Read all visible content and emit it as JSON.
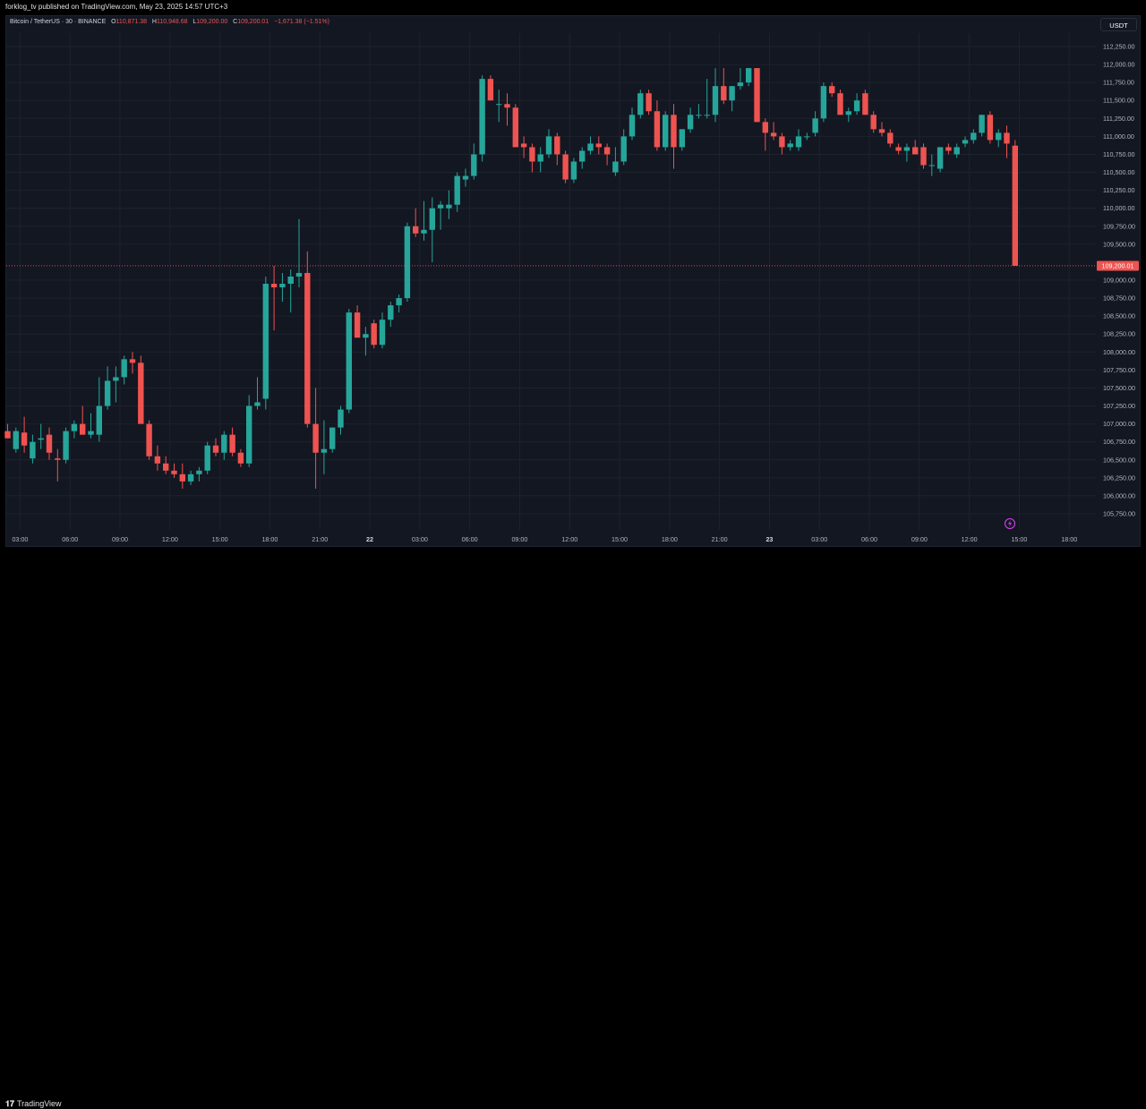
{
  "header": {
    "published_text": "forklog_tv published on TradingView.com, May 23, 2025 14:57 UTC+3"
  },
  "legend": {
    "symbol": "Bitcoin / TetherUS · 30 · BINANCE",
    "open_key": "O",
    "open": "110,871.38",
    "high_key": "H",
    "high": "110,948.68",
    "low_key": "L",
    "low": "109,200.00",
    "close_key": "C",
    "close": "109,200.01",
    "change": "−1,671.38 (−1.51%)"
  },
  "unit_badge": "USDT",
  "footer": {
    "brand": "TradingView",
    "logo_mark": "𝟏𝟕"
  },
  "colors": {
    "up": "#26a69a",
    "down": "#ef5350",
    "background": "#131722",
    "grid": "#1e222d",
    "axis_text": "#b2b5be",
    "price_line": "#ef5350",
    "alert_icon": "#e040fb"
  },
  "icons": {
    "alert": "lightning-alert-icon"
  },
  "chart_data": {
    "type": "candlestick",
    "title": "Bitcoin / TetherUS · 30 · BINANCE",
    "xlabel": "",
    "ylabel": "",
    "ylim": [
      105600,
      112350
    ],
    "y_ticks": [
      "112,250.00",
      "112,000.00",
      "111,750.00",
      "111,500.00",
      "111,250.00",
      "111,000.00",
      "110,750.00",
      "110,500.00",
      "110,250.00",
      "110,000.00",
      "109,750.00",
      "109,500.00",
      "109,000.00",
      "108,750.00",
      "108,500.00",
      "108,250.00",
      "108,000.00",
      "107,750.00",
      "107,500.00",
      "107,250.00",
      "107,000.00",
      "106,750.00",
      "106,500.00",
      "106,250.00",
      "106,000.00",
      "105,750.00"
    ],
    "x_ticks": [
      {
        "label": "03:00",
        "index": 1.5
      },
      {
        "label": "06:00",
        "index": 7.5
      },
      {
        "label": "09:00",
        "index": 13.5
      },
      {
        "label": "12:00",
        "index": 19.5
      },
      {
        "label": "15:00",
        "index": 25.5
      },
      {
        "label": "18:00",
        "index": 31.5
      },
      {
        "label": "21:00",
        "index": 37.5
      },
      {
        "label": "22",
        "index": 43.5
      },
      {
        "label": "03:00",
        "index": 49.5
      },
      {
        "label": "06:00",
        "index": 55.5
      },
      {
        "label": "09:00",
        "index": 61.5
      },
      {
        "label": "12:00",
        "index": 67.5
      },
      {
        "label": "15:00",
        "index": 73.5
      },
      {
        "label": "18:00",
        "index": 79.5
      },
      {
        "label": "21:00",
        "index": 85.5
      },
      {
        "label": "23",
        "index": 91.5
      },
      {
        "label": "03:00",
        "index": 97.5
      },
      {
        "label": "06:00",
        "index": 103.5
      },
      {
        "label": "09:00",
        "index": 109.5
      },
      {
        "label": "12:00",
        "index": 115.5
      },
      {
        "label": "15:00",
        "index": 121.5
      },
      {
        "label": "18:00",
        "index": 127.5
      }
    ],
    "last_price": 109200.01,
    "last_price_label": "109,200.01",
    "candles": [
      {
        "o": 106900,
        "h": 107000,
        "l": 106800,
        "c": 106800
      },
      {
        "o": 106650,
        "h": 106950,
        "l": 106600,
        "c": 106900
      },
      {
        "o": 106880,
        "h": 107100,
        "l": 106600,
        "c": 106700
      },
      {
        "o": 106520,
        "h": 106850,
        "l": 106450,
        "c": 106750
      },
      {
        "o": 106780,
        "h": 107000,
        "l": 106650,
        "c": 106800
      },
      {
        "o": 106850,
        "h": 106950,
        "l": 106500,
        "c": 106600
      },
      {
        "o": 106520,
        "h": 106650,
        "l": 106200,
        "c": 106500
      },
      {
        "o": 106500,
        "h": 106950,
        "l": 106450,
        "c": 106900
      },
      {
        "o": 106900,
        "h": 107050,
        "l": 106800,
        "c": 107000
      },
      {
        "o": 107000,
        "h": 107250,
        "l": 106850,
        "c": 106850
      },
      {
        "o": 106850,
        "h": 107150,
        "l": 106800,
        "c": 106900
      },
      {
        "o": 106850,
        "h": 107650,
        "l": 106750,
        "c": 107250
      },
      {
        "o": 107250,
        "h": 107800,
        "l": 107200,
        "c": 107600
      },
      {
        "o": 107600,
        "h": 107800,
        "l": 107300,
        "c": 107650
      },
      {
        "o": 107650,
        "h": 107950,
        "l": 107550,
        "c": 107900
      },
      {
        "o": 107900,
        "h": 108000,
        "l": 107700,
        "c": 107850
      },
      {
        "o": 107850,
        "h": 107950,
        "l": 107000,
        "c": 107000
      },
      {
        "o": 107000,
        "h": 107050,
        "l": 106500,
        "c": 106550
      },
      {
        "o": 106550,
        "h": 106700,
        "l": 106350,
        "c": 106450
      },
      {
        "o": 106450,
        "h": 106550,
        "l": 106300,
        "c": 106350
      },
      {
        "o": 106350,
        "h": 106450,
        "l": 106250,
        "c": 106300
      },
      {
        "o": 106300,
        "h": 106450,
        "l": 106100,
        "c": 106200
      },
      {
        "o": 106200,
        "h": 106350,
        "l": 106150,
        "c": 106300
      },
      {
        "o": 106300,
        "h": 106400,
        "l": 106200,
        "c": 106350
      },
      {
        "o": 106350,
        "h": 106750,
        "l": 106300,
        "c": 106700
      },
      {
        "o": 106700,
        "h": 106800,
        "l": 106550,
        "c": 106600
      },
      {
        "o": 106600,
        "h": 106900,
        "l": 106500,
        "c": 106850
      },
      {
        "o": 106850,
        "h": 106950,
        "l": 106550,
        "c": 106600
      },
      {
        "o": 106600,
        "h": 106650,
        "l": 106400,
        "c": 106450
      },
      {
        "o": 106450,
        "h": 107400,
        "l": 106400,
        "c": 107250
      },
      {
        "o": 107250,
        "h": 107650,
        "l": 107200,
        "c": 107300
      },
      {
        "o": 107350,
        "h": 109050,
        "l": 107200,
        "c": 108950
      },
      {
        "o": 108950,
        "h": 109200,
        "l": 108300,
        "c": 108900
      },
      {
        "o": 108900,
        "h": 109100,
        "l": 108700,
        "c": 108950
      },
      {
        "o": 108950,
        "h": 109150,
        "l": 108550,
        "c": 109050
      },
      {
        "o": 109050,
        "h": 109850,
        "l": 108900,
        "c": 109100
      },
      {
        "o": 109100,
        "h": 109400,
        "l": 106950,
        "c": 107000
      },
      {
        "o": 107000,
        "h": 107500,
        "l": 106100,
        "c": 106600
      },
      {
        "o": 106600,
        "h": 107050,
        "l": 106300,
        "c": 106650
      },
      {
        "o": 106650,
        "h": 106950,
        "l": 106600,
        "c": 106950
      },
      {
        "o": 106950,
        "h": 107250,
        "l": 106850,
        "c": 107200
      },
      {
        "o": 107200,
        "h": 108600,
        "l": 107150,
        "c": 108550
      },
      {
        "o": 108550,
        "h": 108650,
        "l": 108200,
        "c": 108200
      },
      {
        "o": 108200,
        "h": 108350,
        "l": 107950,
        "c": 108250
      },
      {
        "o": 108400,
        "h": 108450,
        "l": 108050,
        "c": 108100
      },
      {
        "o": 108100,
        "h": 108550,
        "l": 108050,
        "c": 108450
      },
      {
        "o": 108450,
        "h": 108700,
        "l": 108350,
        "c": 108650
      },
      {
        "o": 108650,
        "h": 108800,
        "l": 108550,
        "c": 108750
      },
      {
        "o": 108750,
        "h": 109800,
        "l": 108700,
        "c": 109750
      },
      {
        "o": 109750,
        "h": 110000,
        "l": 109600,
        "c": 109650
      },
      {
        "o": 109650,
        "h": 110100,
        "l": 109550,
        "c": 109700
      },
      {
        "o": 109700,
        "h": 110150,
        "l": 109250,
        "c": 110000
      },
      {
        "o": 110000,
        "h": 110100,
        "l": 109700,
        "c": 110050
      },
      {
        "o": 110000,
        "h": 110250,
        "l": 109850,
        "c": 110050
      },
      {
        "o": 110050,
        "h": 110500,
        "l": 109950,
        "c": 110450
      },
      {
        "o": 110400,
        "h": 110550,
        "l": 110300,
        "c": 110450
      },
      {
        "o": 110450,
        "h": 110900,
        "l": 110400,
        "c": 110750
      },
      {
        "o": 110750,
        "h": 111850,
        "l": 110650,
        "c": 111800
      },
      {
        "o": 111800,
        "h": 111850,
        "l": 111500,
        "c": 111500
      },
      {
        "o": 111450,
        "h": 111650,
        "l": 111200,
        "c": 111450
      },
      {
        "o": 111450,
        "h": 111600,
        "l": 111150,
        "c": 111400
      },
      {
        "o": 111400,
        "h": 111450,
        "l": 110850,
        "c": 110850
      },
      {
        "o": 110900,
        "h": 111000,
        "l": 110700,
        "c": 110850
      },
      {
        "o": 110850,
        "h": 110900,
        "l": 110500,
        "c": 110650
      },
      {
        "o": 110650,
        "h": 110850,
        "l": 110500,
        "c": 110750
      },
      {
        "o": 110750,
        "h": 111100,
        "l": 110700,
        "c": 111000
      },
      {
        "o": 111000,
        "h": 111050,
        "l": 110600,
        "c": 110750
      },
      {
        "o": 110750,
        "h": 110800,
        "l": 110350,
        "c": 110400
      },
      {
        "o": 110400,
        "h": 110700,
        "l": 110350,
        "c": 110650
      },
      {
        "o": 110650,
        "h": 110850,
        "l": 110550,
        "c": 110800
      },
      {
        "o": 110800,
        "h": 111000,
        "l": 110750,
        "c": 110900
      },
      {
        "o": 110900,
        "h": 111000,
        "l": 110750,
        "c": 110850
      },
      {
        "o": 110850,
        "h": 110900,
        "l": 110600,
        "c": 110750
      },
      {
        "o": 110500,
        "h": 110850,
        "l": 110450,
        "c": 110650
      },
      {
        "o": 110650,
        "h": 111100,
        "l": 110600,
        "c": 111000
      },
      {
        "o": 111000,
        "h": 111400,
        "l": 110950,
        "c": 111300
      },
      {
        "o": 111300,
        "h": 111650,
        "l": 111250,
        "c": 111600
      },
      {
        "o": 111600,
        "h": 111650,
        "l": 111300,
        "c": 111350
      },
      {
        "o": 111350,
        "h": 111500,
        "l": 110800,
        "c": 110850
      },
      {
        "o": 110850,
        "h": 111350,
        "l": 110800,
        "c": 111300
      },
      {
        "o": 111300,
        "h": 111450,
        "l": 110550,
        "c": 110850
      },
      {
        "o": 110850,
        "h": 111100,
        "l": 110800,
        "c": 111100
      },
      {
        "o": 111100,
        "h": 111400,
        "l": 111050,
        "c": 111300
      },
      {
        "o": 111300,
        "h": 111450,
        "l": 111250,
        "c": 111300
      },
      {
        "o": 111300,
        "h": 111800,
        "l": 111250,
        "c": 111300
      },
      {
        "o": 111300,
        "h": 111950,
        "l": 111200,
        "c": 111700
      },
      {
        "o": 111700,
        "h": 111950,
        "l": 111450,
        "c": 111500
      },
      {
        "o": 111500,
        "h": 111700,
        "l": 111350,
        "c": 111700
      },
      {
        "o": 111700,
        "h": 111950,
        "l": 111650,
        "c": 111750
      },
      {
        "o": 111750,
        "h": 111950,
        "l": 111700,
        "c": 111950
      },
      {
        "o": 111950,
        "h": 111950,
        "l": 111200,
        "c": 111200
      },
      {
        "o": 111200,
        "h": 111250,
        "l": 110800,
        "c": 111050
      },
      {
        "o": 111050,
        "h": 111200,
        "l": 110950,
        "c": 111000
      },
      {
        "o": 111000,
        "h": 111050,
        "l": 110750,
        "c": 110850
      },
      {
        "o": 110850,
        "h": 110950,
        "l": 110800,
        "c": 110900
      },
      {
        "o": 110850,
        "h": 111100,
        "l": 110800,
        "c": 111000
      },
      {
        "o": 111000,
        "h": 111050,
        "l": 110950,
        "c": 111000
      },
      {
        "o": 111050,
        "h": 111350,
        "l": 111000,
        "c": 111250
      },
      {
        "o": 111250,
        "h": 111750,
        "l": 111200,
        "c": 111700
      },
      {
        "o": 111700,
        "h": 111750,
        "l": 111550,
        "c": 111600
      },
      {
        "o": 111600,
        "h": 111650,
        "l": 111300,
        "c": 111300
      },
      {
        "o": 111300,
        "h": 111400,
        "l": 111200,
        "c": 111350
      },
      {
        "o": 111350,
        "h": 111600,
        "l": 111300,
        "c": 111500
      },
      {
        "o": 111600,
        "h": 111650,
        "l": 111300,
        "c": 111300
      },
      {
        "o": 111300,
        "h": 111350,
        "l": 111050,
        "c": 111100
      },
      {
        "o": 111100,
        "h": 111200,
        "l": 111000,
        "c": 111050
      },
      {
        "o": 111050,
        "h": 111100,
        "l": 110850,
        "c": 110900
      },
      {
        "o": 110850,
        "h": 110900,
        "l": 110750,
        "c": 110800
      },
      {
        "o": 110800,
        "h": 110900,
        "l": 110650,
        "c": 110850
      },
      {
        "o": 110850,
        "h": 110950,
        "l": 110750,
        "c": 110750
      },
      {
        "o": 110850,
        "h": 110900,
        "l": 110550,
        "c": 110600
      },
      {
        "o": 110600,
        "h": 110750,
        "l": 110450,
        "c": 110600
      },
      {
        "o": 110550,
        "h": 110850,
        "l": 110500,
        "c": 110850
      },
      {
        "o": 110850,
        "h": 110900,
        "l": 110750,
        "c": 110800
      },
      {
        "o": 110750,
        "h": 110900,
        "l": 110700,
        "c": 110850
      },
      {
        "o": 110900,
        "h": 111000,
        "l": 110850,
        "c": 110950
      },
      {
        "o": 110950,
        "h": 111100,
        "l": 110900,
        "c": 111050
      },
      {
        "o": 111050,
        "h": 111300,
        "l": 111000,
        "c": 111300
      },
      {
        "o": 111300,
        "h": 111350,
        "l": 110900,
        "c": 110950
      },
      {
        "o": 110950,
        "h": 111100,
        "l": 110850,
        "c": 111050
      },
      {
        "o": 111050,
        "h": 111150,
        "l": 110700,
        "c": 110900
      },
      {
        "o": 110871.38,
        "h": 110948.68,
        "l": 109200,
        "c": 109200.01
      }
    ]
  }
}
